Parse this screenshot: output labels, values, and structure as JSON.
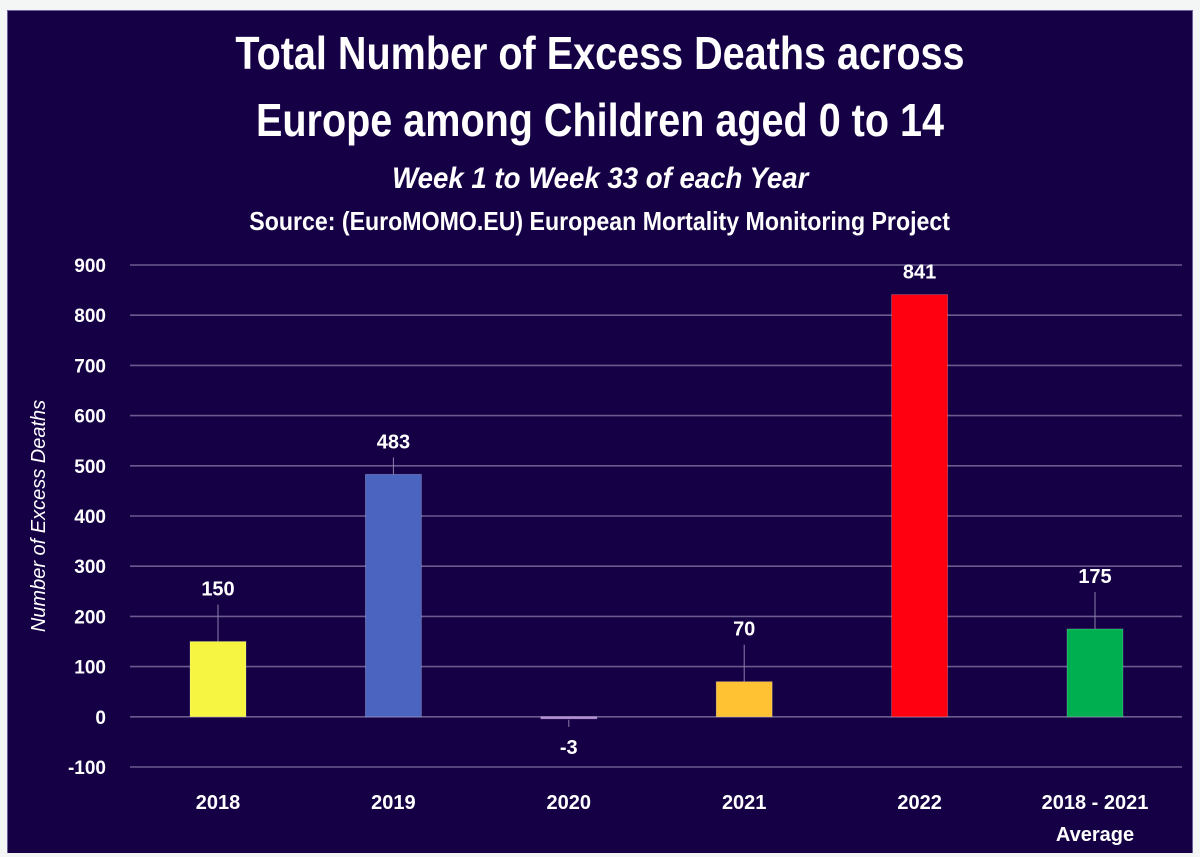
{
  "chart_data": {
    "type": "bar",
    "title": "Total Number of Excess Deaths across Europe among Children aged 0 to 14",
    "title_lines": [
      "Total Number of Excess Deaths across",
      "Europe among Children aged 0 to 14"
    ],
    "subtitle": "Week 1 to Week 33 of each Year",
    "source": "Source: (EuroMOMO.EU) European Mortality Monitoring Project",
    "xlabel": "",
    "ylabel": "Number of Excess Deaths",
    "ylim": [
      -100,
      900
    ],
    "yticks": [
      -100,
      0,
      100,
      200,
      300,
      400,
      500,
      600,
      700,
      800,
      900
    ],
    "grid": true,
    "legend": "none",
    "categories": [
      "2018",
      "2019",
      "2020",
      "2021",
      "2022",
      "2018 - 2021 Average"
    ],
    "category_lines": [
      [
        "2018"
      ],
      [
        "2019"
      ],
      [
        "2020"
      ],
      [
        "2021"
      ],
      [
        "2022"
      ],
      [
        "2018 - 2021",
        "Average"
      ]
    ],
    "values": [
      150,
      483,
      -3,
      70,
      841,
      175
    ],
    "data_labels": [
      "150",
      "483",
      "-3",
      "70",
      "841",
      "175"
    ],
    "colors": [
      "#f5f542",
      "#4a64c0",
      "#b48ad8",
      "#ffc233",
      "#ff0010",
      "#00b050"
    ]
  },
  "theme": {
    "background": "#150045",
    "gridline": "#6a5a8e",
    "text": "#ffffff"
  }
}
